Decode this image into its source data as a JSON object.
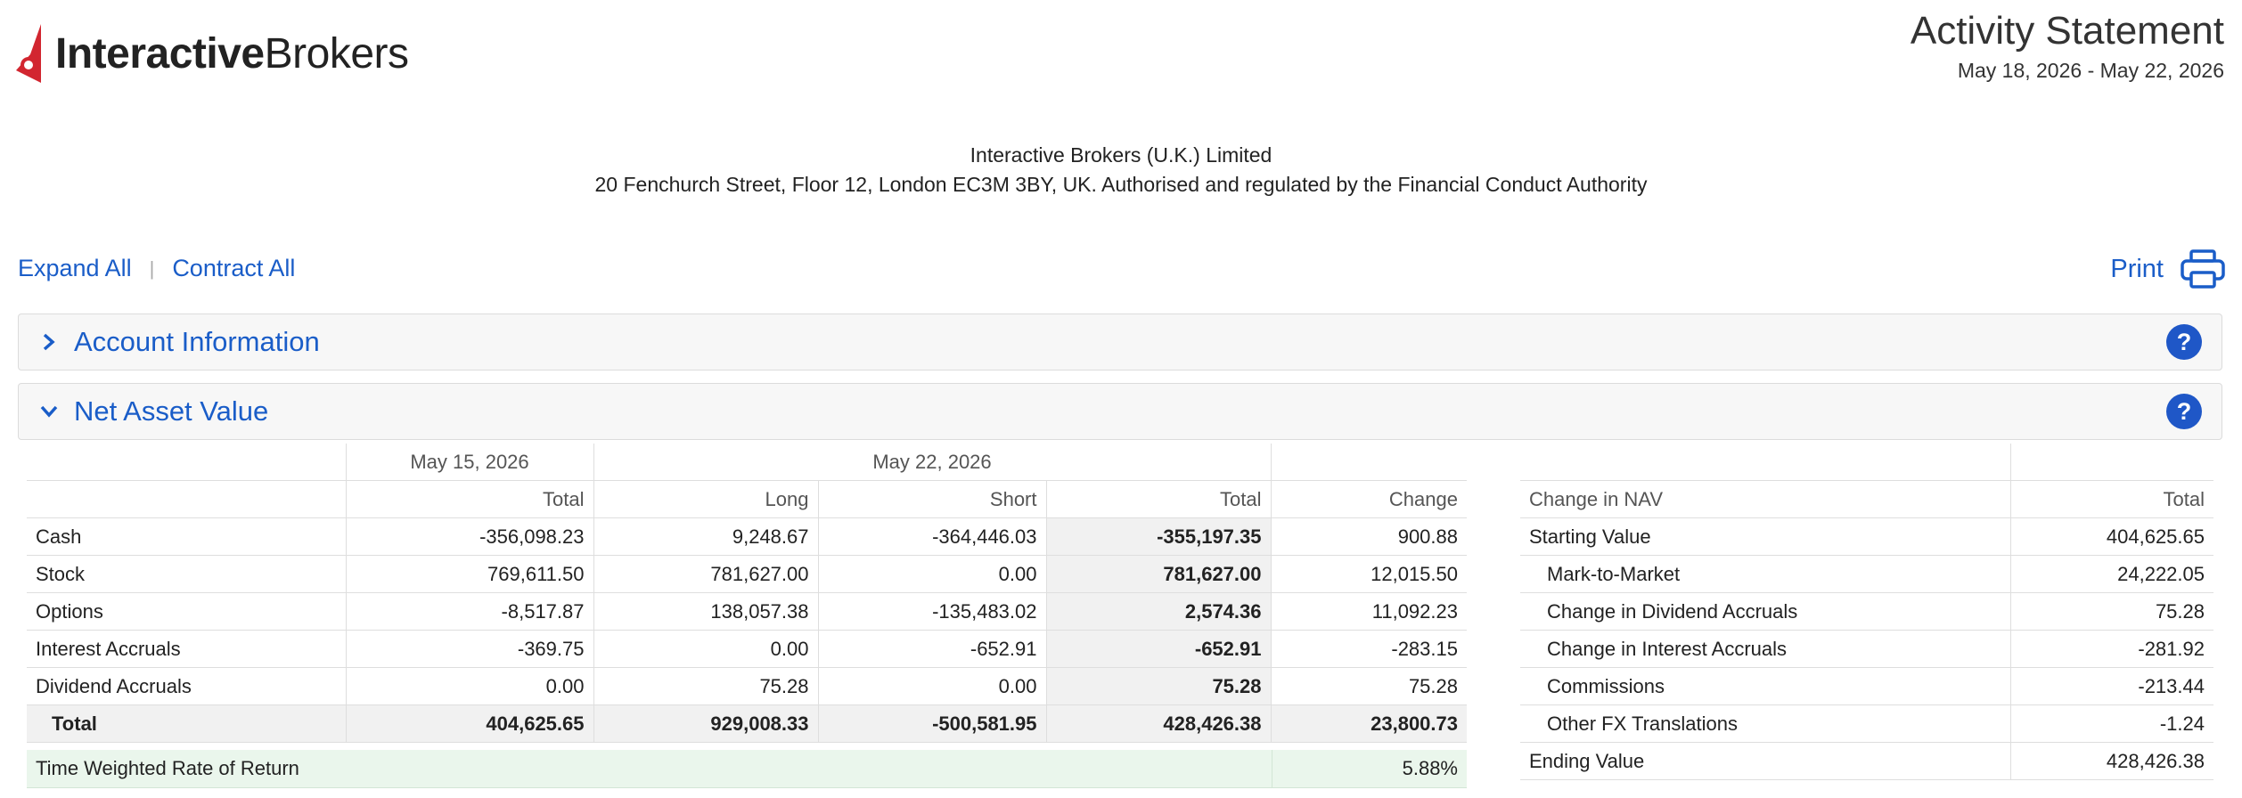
{
  "header": {
    "logo_bold": "Interactive",
    "logo_regular": "Brokers",
    "brand_color": "#d22630",
    "statement_title": "Activity Statement",
    "statement_dates": "May 18, 2026 - May 22, 2026"
  },
  "entity": {
    "name": "Interactive Brokers (U.K.) Limited",
    "address": "20 Fenchurch Street, Floor 12, London EC3M 3BY, UK. Authorised and regulated by the Financial Conduct Authority"
  },
  "controls": {
    "expand_all": "Expand All",
    "separator": "|",
    "contract_all": "Contract All",
    "print": "Print"
  },
  "sections": {
    "account_information": "Account Information",
    "net_asset_value": "Net Asset Value",
    "help": "?"
  },
  "nav": {
    "date_prev": "May 15, 2026",
    "date_curr": "May 22, 2026",
    "columns": [
      "Total",
      "Long",
      "Short",
      "Total",
      "Change"
    ],
    "rows": [
      {
        "label": "Cash",
        "prev_total": "-356,098.23",
        "long": "9,248.67",
        "short": "-364,446.03",
        "total": "-355,197.35",
        "change": "900.88"
      },
      {
        "label": "Stock",
        "prev_total": "769,611.50",
        "long": "781,627.00",
        "short": "0.00",
        "total": "781,627.00",
        "change": "12,015.50"
      },
      {
        "label": "Options",
        "prev_total": "-8,517.87",
        "long": "138,057.38",
        "short": "-135,483.02",
        "total": "2,574.36",
        "change": "11,092.23"
      },
      {
        "label": "Interest Accruals",
        "prev_total": "-369.75",
        "long": "0.00",
        "short": "-652.91",
        "total": "-652.91",
        "change": "-283.15"
      },
      {
        "label": "Dividend Accruals",
        "prev_total": "0.00",
        "long": "75.28",
        "short": "0.00",
        "total": "75.28",
        "change": "75.28"
      }
    ],
    "total": {
      "label": "Total",
      "prev_total": "404,625.65",
      "long": "929,008.33",
      "short": "-500,581.95",
      "total": "428,426.38",
      "change": "23,800.73"
    },
    "twr_label": "Time Weighted Rate of Return",
    "twr_value": "5.88%"
  },
  "change_nav": {
    "col_label": "Change in NAV",
    "col_total": "Total",
    "rows": [
      {
        "label": "Starting Value",
        "value": "404,625.65",
        "indent": false
      },
      {
        "label": "Mark-to-Market",
        "value": "24,222.05",
        "indent": true
      },
      {
        "label": "Change in Dividend Accruals",
        "value": "75.28",
        "indent": true
      },
      {
        "label": "Change in Interest Accruals",
        "value": "-281.92",
        "indent": true
      },
      {
        "label": "Commissions",
        "value": "-213.44",
        "indent": true
      },
      {
        "label": "Other FX Translations",
        "value": "-1.24",
        "indent": true
      },
      {
        "label": "Ending Value",
        "value": "428,426.38",
        "indent": false
      }
    ]
  }
}
